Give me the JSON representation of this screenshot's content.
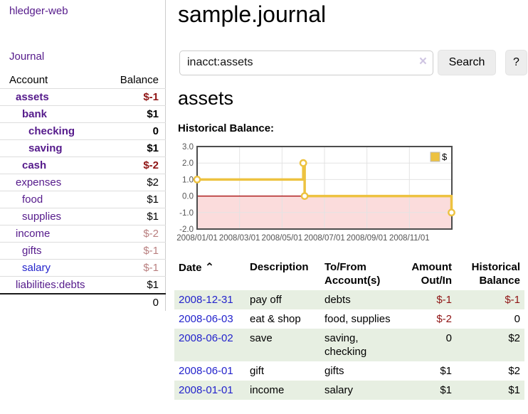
{
  "sidebar": {
    "brand": "hledger-web",
    "nav": {
      "journal": "Journal"
    },
    "table": {
      "account_header": "Account",
      "balance_header": "Balance",
      "accounts": [
        {
          "name": "assets",
          "balance": "$-1"
        },
        {
          "name": "bank",
          "balance": "$1"
        },
        {
          "name": "checking",
          "balance": "0"
        },
        {
          "name": "saving",
          "balance": "$1"
        },
        {
          "name": "cash",
          "balance": "$-2"
        },
        {
          "name": "expenses",
          "balance": "$2"
        },
        {
          "name": "food",
          "balance": "$1"
        },
        {
          "name": "supplies",
          "balance": "$1"
        },
        {
          "name": "income",
          "balance": "$-2"
        },
        {
          "name": "gifts",
          "balance": "$-1"
        },
        {
          "name": "salary",
          "balance": "$-1"
        },
        {
          "name": "liabilities:debts",
          "balance": "$1"
        }
      ],
      "total": "0"
    }
  },
  "header": {
    "title": "sample.journal",
    "search": {
      "value": "inacct:assets",
      "clear_icon": "×",
      "search_button": "Search",
      "help_button": "?"
    }
  },
  "main": {
    "account_heading": "assets"
  },
  "chart_data": {
    "type": "line",
    "title": "Historical Balance:",
    "step": true,
    "x_axis": {
      "ticks": [
        "2008/01/01",
        "2008/03/01",
        "2008/05/01",
        "2008/07/01",
        "2008/09/01",
        "2008/11/01"
      ],
      "tick_interval_months": 2,
      "range_start": "2008-01-01",
      "range_months": 12
    },
    "y_axis": {
      "ticks": [
        "3.0",
        "2.0",
        "1.0",
        "0.0",
        "-1.0",
        "-2.0"
      ],
      "min": -2,
      "max": 3
    },
    "series": [
      {
        "name": "$",
        "color": "#edc240",
        "points": [
          {
            "date": "2008-01-01",
            "value": 1
          },
          {
            "date": "2008-06-01",
            "value": 2
          },
          {
            "date": "2008-06-03",
            "value": 0
          },
          {
            "date": "2008-12-31",
            "value": -1
          }
        ]
      }
    ],
    "negative_region_fill": "#fbdcdc",
    "zero_line_color": "#a40000",
    "grid_color": "#e3e3e3",
    "border_color": "#4d4d4d",
    "tick_label_color": "#545454",
    "legend_position": "top-right",
    "grid": true
  },
  "register": {
    "columns": [
      "Date",
      "Description",
      "To/From Account(s)",
      "Amount Out/In",
      "Historical Balance"
    ],
    "sort_icon": "⌃",
    "rows": [
      {
        "date": "2008-12-31",
        "description": "pay off",
        "accounts": "debts",
        "amount": "$-1",
        "balance": "$-1"
      },
      {
        "date": "2008-06-03",
        "description": "eat & shop",
        "accounts": "food, supplies",
        "amount": "$-2",
        "balance": "0"
      },
      {
        "date": "2008-06-02",
        "description": "save",
        "accounts": "saving, checking",
        "amount": "0",
        "balance": "$2"
      },
      {
        "date": "2008-06-01",
        "description": "gift",
        "accounts": "gifts",
        "amount": "$1",
        "balance": "$2"
      },
      {
        "date": "2008-01-01",
        "description": "income",
        "accounts": "salary",
        "amount": "$1",
        "balance": "$1"
      }
    ]
  },
  "colors": {
    "link_purple": "#551a8b",
    "link_blue": "#2323cc",
    "negative_strong": "#8f1414",
    "negative_soft": "#b97f7f",
    "row_alt_green": "#e7efe2",
    "series_gold": "#edc240"
  }
}
